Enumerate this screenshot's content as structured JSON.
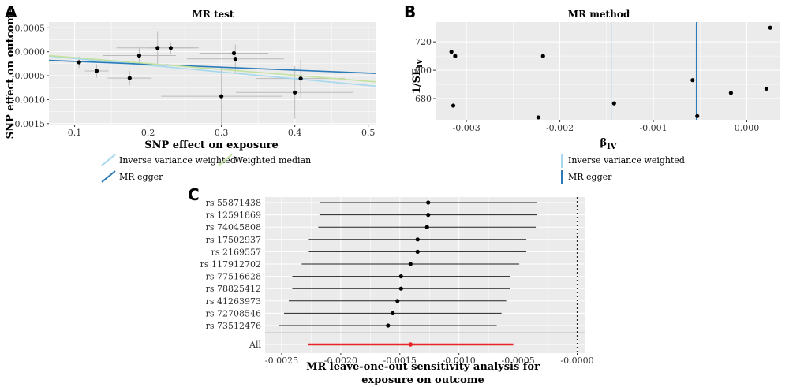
{
  "figure": {
    "colors": {
      "panel_bg": "#ebebeb",
      "grid": "#ffffff",
      "ivw": "#a6d8ee",
      "egger": "#2b7bba",
      "median": "#c3e2a0",
      "point": "#000000",
      "errbar": "#bbbbbb",
      "all": "#e8262a"
    }
  },
  "chart_data": [
    {
      "panel": "A",
      "type": "scatter",
      "title": "MR test",
      "xlabel": "SNP effect on exposure",
      "ylabel": "SNP effect on outcome",
      "xlim": [
        0.065,
        0.51
      ],
      "ylim": [
        -0.00152,
        0.00062
      ],
      "xticks": [
        0.1,
        0.2,
        0.3,
        0.4,
        0.5
      ],
      "xtick_labels": [
        "0.1",
        "0.2",
        "0.3",
        "0.4",
        "0.5"
      ],
      "yticks": [
        0.0005,
        0.0,
        -0.0005,
        -0.001,
        -0.0015
      ],
      "ytick_labels": [
        "0.0005",
        "0.0000",
        "-0.0005",
        "-0.0010",
        "-0.0015"
      ],
      "grid": true,
      "points": [
        {
          "x": 0.106,
          "y": -0.00022,
          "xerr": 0.004,
          "yerr": 0.00012
        },
        {
          "x": 0.13,
          "y": -0.0004,
          "xerr": 0.016,
          "yerr": 0.00014
        },
        {
          "x": 0.175,
          "y": -0.00055,
          "xerr": 0.03,
          "yerr": 0.00015
        },
        {
          "x": 0.188,
          "y": -8e-05,
          "xerr": 0.05,
          "yerr": 0.00017
        },
        {
          "x": 0.213,
          "y": 8e-05,
          "xerr": 0.056,
          "yerr": 0.00035
        },
        {
          "x": 0.231,
          "y": 8e-05,
          "xerr": 0.033,
          "yerr": 0.00012
        },
        {
          "x": 0.3,
          "y": -0.00093,
          "xerr": 0.082,
          "yerr": 0.0006
        },
        {
          "x": 0.317,
          "y": -3e-05,
          "xerr": 0.047,
          "yerr": 0.00015
        },
        {
          "x": 0.319,
          "y": -0.00015,
          "xerr": 0.066,
          "yerr": 0.0003
        },
        {
          "x": 0.4,
          "y": -0.00085,
          "xerr": 0.08,
          "yerr": 0.00055
        },
        {
          "x": 0.408,
          "y": -0.00056,
          "xerr": 0.06,
          "yerr": 0.0004
        }
      ],
      "lines": [
        {
          "name": "Inverse variance weighted",
          "color": "#a6d8ee",
          "intercept": 0.0,
          "slope": -0.00141
        },
        {
          "name": "MR egger",
          "color": "#2b7bba",
          "intercept": -0.00014,
          "slope": -0.00061
        },
        {
          "name": "Weighted median",
          "color": "#c3e2a0",
          "intercept": -0.0,
          "slope": -0.00123
        }
      ],
      "legend": [
        "Inverse variance weighted",
        "Weighted median",
        "MR egger"
      ],
      "legend_position": "bottom"
    },
    {
      "panel": "B",
      "type": "scatter",
      "title": "MR method",
      "xlabel": "βIV",
      "ylabel": "1/SEIV",
      "xlim": [
        -0.00333,
        0.00035
      ],
      "ylim": [
        665,
        734
      ],
      "xticks": [
        -0.003,
        -0.002,
        -0.001,
        0.0
      ],
      "xtick_labels": [
        "-0.003",
        "-0.002",
        "-0.001",
        "0.000"
      ],
      "yticks": [
        720,
        700,
        680
      ],
      "ytick_labels": [
        "720",
        "700",
        "680"
      ],
      "grid": true,
      "points": [
        {
          "x": -0.00316,
          "y": 713
        },
        {
          "x": -0.00312,
          "y": 710
        },
        {
          "x": -0.00314,
          "y": 675
        },
        {
          "x": -0.00218,
          "y": 710
        },
        {
          "x": -0.00223,
          "y": 666.7
        },
        {
          "x": -0.00142,
          "y": 676.6
        },
        {
          "x": -0.00058,
          "y": 693
        },
        {
          "x": -0.00053,
          "y": 667.6
        },
        {
          "x": -0.00017,
          "y": 684
        },
        {
          "x": 0.00021,
          "y": 687
        },
        {
          "x": 0.00025,
          "y": 730
        }
      ],
      "vlines": [
        {
          "name": "Inverse variance weighted",
          "color": "#a6d8ee",
          "x": -0.00145
        },
        {
          "name": "MR egger",
          "color": "#2b7bba",
          "x": -0.00054
        }
      ],
      "legend": [
        "Inverse variance weighted",
        "MR egger"
      ],
      "legend_position": "bottom"
    },
    {
      "panel": "C",
      "type": "forest",
      "title": "MR leave-one-out sensitivity analysis for exposure on outcome",
      "title_lines": [
        "MR leave-one-out sensitivity analysis for",
        "exposure on outcome"
      ],
      "xlim": [
        -0.00264,
        7e-05
      ],
      "xticks": [
        -0.0025,
        -0.002,
        -0.0015,
        -0.001,
        -0.0005,
        0.0
      ],
      "xtick_labels": [
        "-0.0025",
        "-0.0020",
        "-0.0015",
        "-0.0010",
        "-0.0005",
        "-0.0000"
      ],
      "reference_line": 0.0,
      "rows": [
        {
          "label": "rs 55871438",
          "est": -0.00126,
          "lo": -0.00218,
          "hi": -0.00034
        },
        {
          "label": "rs 12591869",
          "est": -0.00126,
          "lo": -0.00218,
          "hi": -0.00034
        },
        {
          "label": "rs 74045808",
          "est": -0.00127,
          "lo": -0.00219,
          "hi": -0.00035
        },
        {
          "label": "rs 17502937",
          "est": -0.00135,
          "lo": -0.00227,
          "hi": -0.00043
        },
        {
          "label": "rs 2169557",
          "est": -0.00135,
          "lo": -0.00227,
          "hi": -0.00043
        },
        {
          "label": "rs 117912702",
          "est": -0.00141,
          "lo": -0.00233,
          "hi": -0.00049
        },
        {
          "label": "rs 77516628",
          "est": -0.00149,
          "lo": -0.00241,
          "hi": -0.00057
        },
        {
          "label": "rs 78825412",
          "est": -0.00149,
          "lo": -0.00241,
          "hi": -0.00057
        },
        {
          "label": "rs 41263973",
          "est": -0.00152,
          "lo": -0.00244,
          "hi": -0.0006
        },
        {
          "label": "rs 72708546",
          "est": -0.00156,
          "lo": -0.00248,
          "hi": -0.00064
        },
        {
          "label": "rs 73512476",
          "est": -0.0016,
          "lo": -0.00252,
          "hi": -0.00068
        }
      ],
      "overall": {
        "label": "All",
        "est": -0.00141,
        "lo": -0.00228,
        "hi": -0.00054
      }
    }
  ]
}
